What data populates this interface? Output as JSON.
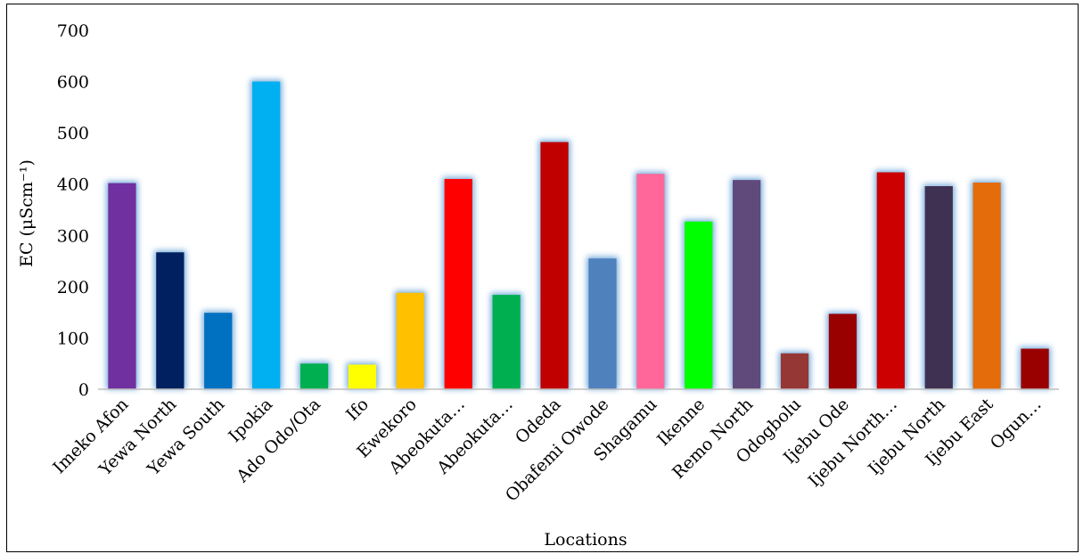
{
  "chart_data": {
    "type": "bar",
    "title": "",
    "xlabel": "Locations",
    "ylabel": "EC (μScm⁻¹)",
    "ylim": [
      0,
      700
    ],
    "yticks": [
      0,
      100,
      200,
      300,
      400,
      500,
      600,
      700
    ],
    "grid": false,
    "legend": "none",
    "categories": [
      "Imeko Afon",
      "Yewa North",
      "Yewa South",
      "Ipokia",
      "Ado Odo/Ota",
      "Ifo",
      "Ewekoro",
      "Abeokuta…",
      "Abeokuta…",
      "Odeda",
      "Obafemi Owode",
      "Shagamu",
      "Ikenne",
      "Remo North",
      "Odogbolu",
      "Ijebu Ode",
      "Ijebu North…",
      "Ijebu North",
      "Ijebu East",
      "Ogun…"
    ],
    "values": [
      402,
      267,
      149,
      600,
      50,
      48,
      188,
      410,
      184,
      482,
      255,
      420,
      327,
      408,
      70,
      147,
      423,
      396,
      403,
      79
    ],
    "colors": [
      "#7030A0",
      "#002060",
      "#0070C0",
      "#00B0F0",
      "#00B050",
      "#FFFF00",
      "#FFC000",
      "#FF0000",
      "#00B050",
      "#C00000",
      "#4F81BD",
      "#FF6699",
      "#00FF00",
      "#604A7B",
      "#953735",
      "#990000",
      "#CC0000",
      "#3F3151",
      "#E46C0A",
      "#990000"
    ]
  }
}
